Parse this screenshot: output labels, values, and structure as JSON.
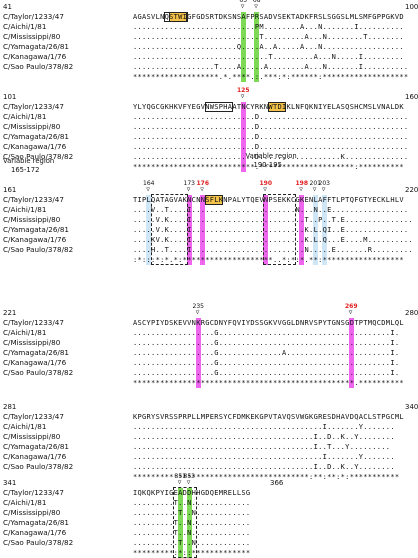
{
  "strains": [
    "C/Taylor/1233/47",
    "C/Aichi/1/81",
    "C/Mississippi/80",
    "C/Yamagata/26/81",
    "C/Kanagawa/1/76",
    "C/Sao Paulo/378/82"
  ],
  "blocks": [
    {
      "start": "41",
      "end": "100",
      "rows": [
        "AGASVLNQSTWIGFGDSRTDKSNSAFPRSADVSEKTADKFRSLSGGSLMLSMFGPPGKVD",
        "...........................PM........A...N.......I..........",
        "............................T.........A...N........T........",
        ".......................Q....A..A.....A...N..................",
        "..............................T.........A...N.....I.........",
        "..................T....A.....A........A...N.......I.........."
      ],
      "consensus": "*******************.*.****.:.***:*:******:*******************",
      "markers": [
        "65",
        "68"
      ]
    },
    {
      "start": "101",
      "end": "160",
      "rows": [
        "YLYQGCGKHKVFYEGVNWSPHAATNCYRKNWTDIKLNFQKNIYELASQSHCMSLVNALDK",
        "...........................D.................................",
        "...........................D.................................",
        "...........................D.................................",
        "...........................D.................................",
        "...........................D..................K.............."
      ],
      "consensus": "***************************.*********************:**********",
      "markers": [
        "125"
      ]
    },
    {
      "start": "161",
      "end": "220",
      "rows": [
        "TIPLQATAGVAKNCNNSFLKNPALYTQEVNPSEKKCGKENLAFFTLPTQFGTYECKLHLV",
        "....V..T....I.......................N...N..E.................",
        ".....V.K....I.........................T..P..T.E...............",
        ".....V.K....I.........................K.L.QI..E..............",
        "....KV.K....I.........................K.L.Q...E....M..........",
        "....H..T....I.........................N.....E.......R........."
      ],
      "consensus": ":*:::*:*.*:********************..*:*:*.**:******************",
      "markers": [
        "164",
        "173",
        "176",
        "190",
        "198",
        "201",
        "203"
      ],
      "regions": [
        {
          "label": "Variable region",
          "range": "165-172"
        },
        {
          "label": "Variable region",
          "range": "190-195"
        }
      ]
    },
    {
      "start": "221",
      "end": "280",
      "rows": [
        "ASCYPIYDSKEVVNKRGCDNYFQVIYDSSGKVVGGLDNRVSPYTGNSGDTPTMQCDMLQL",
        "..................G......................................I.",
        "..................G......................................I.",
        "..................G..............A.......................I.",
        "..................G......................................I.",
        "..................G......................................I."
      ],
      "consensus": "*************************************************.**********",
      "markers": [
        "235",
        "269"
      ]
    },
    {
      "start": "281",
      "end": "340",
      "rows": [
        "KPGRYSVRSSPRPLLMPERSYCFDMKEKGPVTAVQSVWGKGRESDHAVDQACLSTPGCML",
        "..........................................I.......Y.......",
        "........................................I..D..K..Y........",
        "........................................I..T...Y.........",
        "..........................................I.......Y.......",
        "........................................I..D..K..Y........"
      ],
      "consensus": "***************************************:**:**:*:***********",
      "markers": []
    },
    {
      "start": "341",
      "end": "366",
      "rows": [
        "IQKQKPYIGEADDHHGDQEMRELLSG",
        ".........T..N.............",
        "..........T..N............",
        ".........T..N.............",
        ".........T..N.............",
        "..........T..N............"
      ],
      "consensus": "*********:*::*************",
      "markers": [
        "351",
        "353"
      ]
    }
  ]
}
